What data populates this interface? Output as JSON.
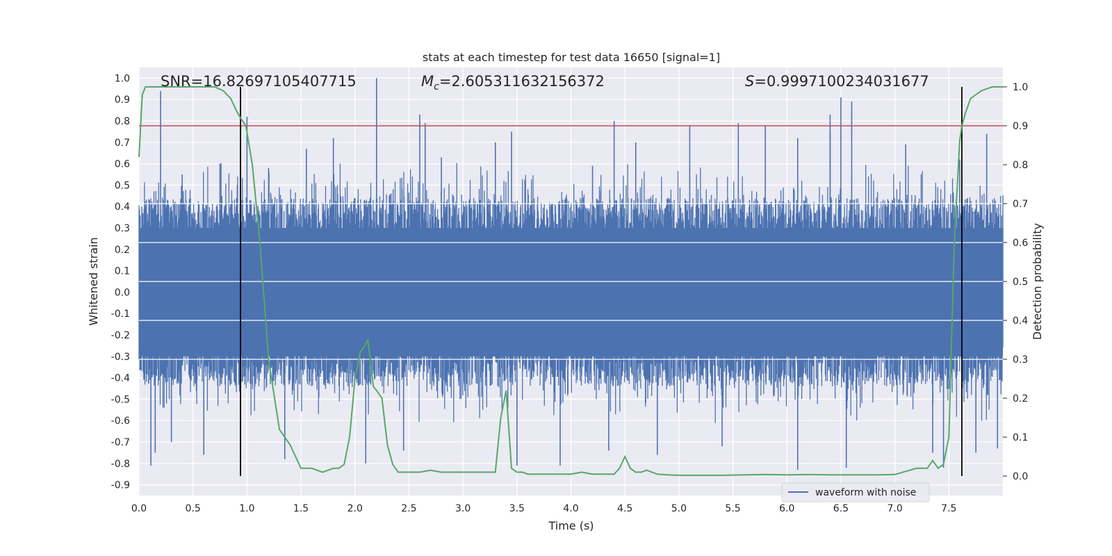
{
  "chart_data": {
    "type": "line",
    "title": "stats at each timestep for test data 16650 [signal=1]",
    "xlabel": "Time (s)",
    "ylabel": "Whitened strain",
    "y2label": "Detection probability",
    "xlim": [
      0.0,
      8.0
    ],
    "ylim": [
      -0.95,
      1.05
    ],
    "y2lim": [
      -0.05,
      1.05
    ],
    "grid": true,
    "x_ticks": [
      "0.0",
      "0.5",
      "1.0",
      "1.5",
      "2.0",
      "2.5",
      "3.0",
      "3.5",
      "4.0",
      "4.5",
      "5.0",
      "5.5",
      "6.0",
      "6.5",
      "7.0",
      "7.5"
    ],
    "y_ticks": [
      "1.0",
      "0.9",
      "0.8",
      "0.7",
      "0.6",
      "0.5",
      "0.4",
      "0.3",
      "0.2",
      "0.1",
      "0.0",
      "-0.1",
      "-0.2",
      "-0.3",
      "-0.4",
      "-0.5",
      "-0.6",
      "-0.7",
      "-0.8",
      "-0.9"
    ],
    "y2_ticks": [
      "1.0",
      "0.9",
      "0.8",
      "0.7",
      "0.6",
      "0.5",
      "0.4",
      "0.3",
      "0.2",
      "0.1",
      "0.0"
    ],
    "annotations": {
      "snr": "SNR=16.82697105407715",
      "mc_symbol": "M",
      "mc_sub": "c",
      "mc_value": "=2.605311632156372",
      "s_symbol": "S",
      "s_value": "=0.9997100234031677"
    },
    "legend": {
      "entries": [
        "waveform with noise"
      ],
      "placement": "lower-right"
    },
    "threshold": {
      "y2": 0.9
    },
    "vlines": [
      0.94,
      7.62
    ],
    "series": [
      {
        "name": "waveform with noise",
        "color": "#4c72b0",
        "kind": "noise-band",
        "band": [
          -0.3,
          0.3
        ],
        "peaks": [
          [
            0.2,
            0.94
          ],
          [
            0.11,
            -0.81
          ],
          [
            0.15,
            -0.75
          ],
          [
            0.3,
            -0.7
          ],
          [
            0.4,
            0.55
          ],
          [
            0.6,
            -0.76
          ],
          [
            0.75,
            0.6
          ],
          [
            0.94,
            0.68
          ],
          [
            1.0,
            0.82
          ],
          [
            1.2,
            0.58
          ],
          [
            1.35,
            -0.78
          ],
          [
            1.55,
            0.67
          ],
          [
            1.8,
            0.72
          ],
          [
            2.1,
            -0.8
          ],
          [
            2.2,
            1.0
          ],
          [
            2.45,
            -0.74
          ],
          [
            2.6,
            0.83
          ],
          [
            2.65,
            0.79
          ],
          [
            2.8,
            0.63
          ],
          [
            3.3,
            0.7
          ],
          [
            3.45,
            0.75
          ],
          [
            3.5,
            -0.81
          ],
          [
            3.9,
            -0.81
          ],
          [
            4.2,
            0.59
          ],
          [
            4.35,
            -0.74
          ],
          [
            4.4,
            0.8
          ],
          [
            4.6,
            0.7
          ],
          [
            4.8,
            -0.76
          ],
          [
            5.1,
            0.78
          ],
          [
            5.4,
            -0.72
          ],
          [
            5.55,
            0.79
          ],
          [
            5.8,
            0.78
          ],
          [
            6.1,
            0.72
          ],
          [
            6.1,
            -0.83
          ],
          [
            6.4,
            0.75
          ],
          [
            6.4,
            0.83
          ],
          [
            6.5,
            0.91
          ],
          [
            6.55,
            -0.82
          ],
          [
            6.6,
            0.89
          ],
          [
            7.1,
            0.69
          ],
          [
            7.35,
            -0.75
          ],
          [
            7.45,
            -0.82
          ],
          [
            7.6,
            0.62
          ],
          [
            7.75,
            -0.75
          ],
          [
            7.85,
            0.74
          ],
          [
            7.95,
            -0.73
          ]
        ]
      },
      {
        "name": "",
        "color": "#55a868",
        "axis": "y2",
        "x": [
          0.0,
          0.03,
          0.06,
          0.12,
          0.2,
          0.3,
          0.45,
          0.6,
          0.7,
          0.78,
          0.85,
          0.9,
          0.94,
          0.99,
          1.05,
          1.12,
          1.2,
          1.3,
          1.4,
          1.45,
          1.5,
          1.55,
          1.6,
          1.7,
          1.8,
          1.85,
          1.9,
          1.95,
          2.0,
          2.05,
          2.08,
          2.12,
          2.17,
          2.2,
          2.25,
          2.3,
          2.35,
          2.4,
          2.45,
          2.5,
          2.6,
          2.7,
          2.8,
          2.9,
          3.0,
          3.1,
          3.2,
          3.3,
          3.35,
          3.4,
          3.45,
          3.5,
          3.55,
          3.6,
          3.7,
          3.8,
          3.9,
          4.0,
          4.1,
          4.2,
          4.3,
          4.4,
          4.45,
          4.5,
          4.55,
          4.6,
          4.65,
          4.7,
          4.75,
          4.8,
          4.9,
          5.0,
          5.2,
          5.4,
          5.6,
          5.8,
          6.0,
          6.2,
          6.4,
          6.6,
          6.8,
          7.0,
          7.2,
          7.3,
          7.35,
          7.4,
          7.45,
          7.5,
          7.55,
          7.6,
          7.62,
          7.65,
          7.7,
          7.8,
          7.9,
          8.0
        ],
        "values": [
          0.82,
          0.98,
          1.0,
          1.0,
          1.0,
          1.0,
          1.0,
          1.0,
          1.0,
          0.99,
          0.97,
          0.94,
          0.92,
          0.9,
          0.8,
          0.6,
          0.3,
          0.12,
          0.08,
          0.05,
          0.02,
          0.02,
          0.02,
          0.01,
          0.02,
          0.02,
          0.03,
          0.1,
          0.25,
          0.32,
          0.33,
          0.35,
          0.23,
          0.22,
          0.2,
          0.08,
          0.03,
          0.01,
          0.01,
          0.01,
          0.01,
          0.015,
          0.01,
          0.01,
          0.01,
          0.01,
          0.01,
          0.01,
          0.15,
          0.22,
          0.02,
          0.01,
          0.01,
          0.005,
          0.005,
          0.005,
          0.005,
          0.005,
          0.01,
          0.005,
          0.005,
          0.005,
          0.02,
          0.05,
          0.02,
          0.01,
          0.01,
          0.015,
          0.01,
          0.005,
          0.003,
          0.002,
          0.002,
          0.002,
          0.003,
          0.004,
          0.003,
          0.004,
          0.003,
          0.003,
          0.003,
          0.004,
          0.02,
          0.02,
          0.04,
          0.02,
          0.03,
          0.1,
          0.6,
          0.86,
          0.9,
          0.93,
          0.97,
          0.99,
          1.0,
          1.0
        ]
      }
    ]
  }
}
